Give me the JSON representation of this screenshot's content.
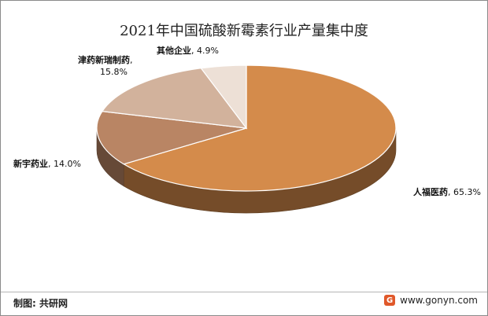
{
  "chart_data": {
    "type": "pie",
    "title": "2021年中国硫酸新霉素行业产量集中度",
    "slices": [
      {
        "label": "人福医药",
        "value": 65.3,
        "value_text": "65.3%",
        "color": "#d48b4b"
      },
      {
        "label": "新宇药业",
        "value": 14.0,
        "value_text": "14.0%",
        "color": "#b98564"
      },
      {
        "label": "津药新瑞制药",
        "value": 15.8,
        "value_text": "15.8%",
        "color": "#d2b29c"
      },
      {
        "label": "其他企业",
        "value": 4.9,
        "value_text": "4.9%",
        "color": "#ede0d6"
      }
    ],
    "legend": "none"
  },
  "footer": {
    "source": "制图: 共研网",
    "site": "www.gonyn.com"
  }
}
